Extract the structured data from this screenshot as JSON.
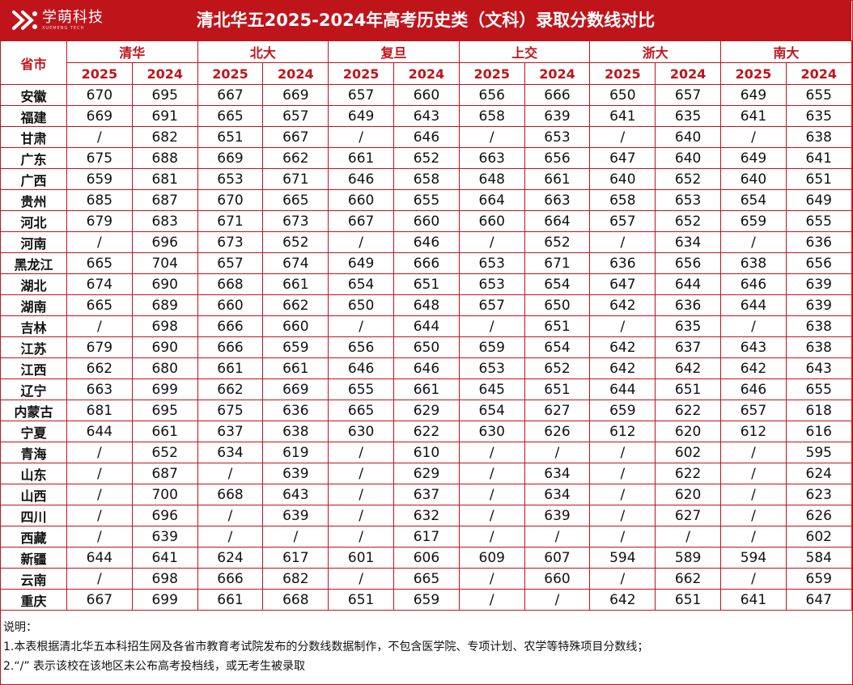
{
  "title": "清北华五2025-2024年高考历史类（文科）录取分数线对比",
  "logo": {
    "name": "学萌科技",
    "sub": "XUEMENG TECH"
  },
  "colors": {
    "accent": "#c0141b"
  },
  "table": {
    "province_header": "省市",
    "schools": [
      "清华",
      "北大",
      "复旦",
      "上交",
      "浙大",
      "南大"
    ],
    "years": [
      "2025",
      "2024"
    ],
    "rows": [
      {
        "province": "安徽",
        "values": [
          "670",
          "695",
          "667",
          "669",
          "657",
          "660",
          "656",
          "666",
          "650",
          "657",
          "649",
          "655"
        ]
      },
      {
        "province": "福建",
        "values": [
          "669",
          "691",
          "665",
          "657",
          "649",
          "643",
          "658",
          "639",
          "641",
          "635",
          "641",
          "635"
        ]
      },
      {
        "province": "甘肃",
        "values": [
          "/",
          "682",
          "651",
          "667",
          "/",
          "646",
          "/",
          "653",
          "/",
          "640",
          "/",
          "638"
        ]
      },
      {
        "province": "广东",
        "values": [
          "675",
          "688",
          "669",
          "662",
          "661",
          "652",
          "663",
          "656",
          "647",
          "640",
          "649",
          "641"
        ]
      },
      {
        "province": "广西",
        "values": [
          "659",
          "681",
          "653",
          "671",
          "646",
          "658",
          "648",
          "661",
          "640",
          "652",
          "640",
          "651"
        ]
      },
      {
        "province": "贵州",
        "values": [
          "685",
          "687",
          "670",
          "665",
          "660",
          "655",
          "664",
          "663",
          "658",
          "653",
          "654",
          "649"
        ]
      },
      {
        "province": "河北",
        "values": [
          "679",
          "683",
          "671",
          "673",
          "667",
          "660",
          "660",
          "664",
          "657",
          "652",
          "659",
          "655"
        ]
      },
      {
        "province": "河南",
        "values": [
          "/",
          "696",
          "673",
          "652",
          "/",
          "646",
          "/",
          "652",
          "/",
          "634",
          "/",
          "636"
        ]
      },
      {
        "province": "黑龙江",
        "values": [
          "665",
          "704",
          "657",
          "674",
          "649",
          "666",
          "653",
          "671",
          "636",
          "656",
          "638",
          "656"
        ]
      },
      {
        "province": "湖北",
        "values": [
          "674",
          "690",
          "668",
          "661",
          "654",
          "651",
          "653",
          "654",
          "647",
          "644",
          "646",
          "639"
        ]
      },
      {
        "province": "湖南",
        "values": [
          "665",
          "689",
          "660",
          "662",
          "650",
          "648",
          "657",
          "650",
          "642",
          "636",
          "644",
          "639"
        ]
      },
      {
        "province": "吉林",
        "values": [
          "/",
          "698",
          "666",
          "660",
          "/",
          "644",
          "/",
          "651",
          "/",
          "635",
          "/",
          "638"
        ]
      },
      {
        "province": "江苏",
        "values": [
          "679",
          "690",
          "666",
          "659",
          "656",
          "650",
          "659",
          "654",
          "642",
          "637",
          "643",
          "638"
        ]
      },
      {
        "province": "江西",
        "values": [
          "662",
          "680",
          "661",
          "661",
          "646",
          "646",
          "653",
          "652",
          "642",
          "642",
          "642",
          "643"
        ]
      },
      {
        "province": "辽宁",
        "values": [
          "663",
          "699",
          "662",
          "669",
          "655",
          "661",
          "645",
          "651",
          "644",
          "651",
          "646",
          "655"
        ]
      },
      {
        "province": "内蒙古",
        "values": [
          "681",
          "695",
          "675",
          "636",
          "665",
          "629",
          "654",
          "627",
          "659",
          "622",
          "657",
          "618"
        ]
      },
      {
        "province": "宁夏",
        "values": [
          "644",
          "661",
          "637",
          "638",
          "630",
          "622",
          "630",
          "626",
          "612",
          "620",
          "612",
          "616"
        ]
      },
      {
        "province": "青海",
        "values": [
          "/",
          "652",
          "634",
          "619",
          "/",
          "610",
          "/",
          "/",
          "/",
          "602",
          "/",
          "595"
        ]
      },
      {
        "province": "山东",
        "values": [
          "/",
          "687",
          "/",
          "639",
          "/",
          "629",
          "/",
          "634",
          "/",
          "622",
          "/",
          "624"
        ]
      },
      {
        "province": "山西",
        "values": [
          "/",
          "700",
          "668",
          "643",
          "/",
          "637",
          "/",
          "634",
          "/",
          "620",
          "/",
          "623"
        ]
      },
      {
        "province": "四川",
        "values": [
          "/",
          "696",
          "/",
          "639",
          "/",
          "632",
          "/",
          "639",
          "/",
          "627",
          "/",
          "626"
        ]
      },
      {
        "province": "西藏",
        "values": [
          "/",
          "639",
          "/",
          "/",
          "/",
          "617",
          "/",
          "/",
          "/",
          "/",
          "/",
          "602"
        ]
      },
      {
        "province": "新疆",
        "values": [
          "644",
          "641",
          "624",
          "617",
          "601",
          "606",
          "609",
          "607",
          "594",
          "589",
          "594",
          "584"
        ]
      },
      {
        "province": "云南",
        "values": [
          "/",
          "698",
          "666",
          "682",
          "/",
          "665",
          "/",
          "660",
          "/",
          "662",
          "/",
          "659"
        ]
      },
      {
        "province": "重庆",
        "values": [
          "667",
          "699",
          "661",
          "668",
          "651",
          "659",
          "/",
          "/",
          "642",
          "651",
          "641",
          "647"
        ]
      }
    ]
  },
  "notes": {
    "heading": "说明：",
    "line1": "1.本表根据清北华五本科招生网及各省市教育考试院发布的分数线数据制作，不包含医学院、专项计划、农学等特殊项目分数线；",
    "line2": "2.“/” 表示该校在该地区未公布高考投档线，或无考生被录取"
  }
}
